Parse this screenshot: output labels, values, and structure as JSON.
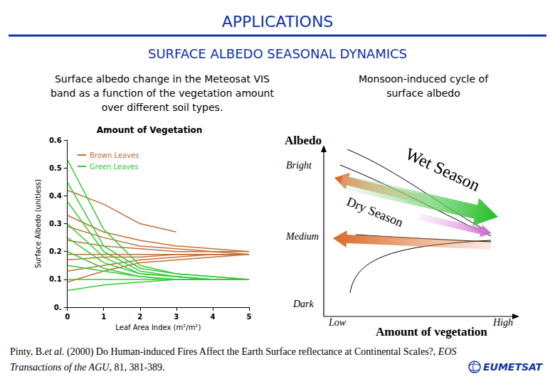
{
  "slide": {
    "title": "APPLICATIONS",
    "subtitle": "SURFACE ALBEDO SEASONAL DYNAMICS",
    "left_caption": [
      "Surface albedo change in the Meteosat VIS",
      "band as a function of the vegetation amount",
      "over different soil types."
    ],
    "right_caption": [
      "Monsoon-induced cycle of",
      "surface albedo"
    ],
    "citation": [
      [
        {
          "text": "Pinty, B.",
          "italic": false
        },
        {
          "text": "et al.",
          "italic": true
        },
        {
          "text": " (2000) Do Human-induced Fires Affect the Earth Surface reflectance at Continental Scales?, ",
          "italic": false
        },
        {
          "text": "EOS",
          "italic": true
        }
      ],
      [
        {
          "text": "Transactions of the AGU",
          "italic": true
        },
        {
          "text": ", 81, 381-389.",
          "italic": false
        }
      ]
    ],
    "logo": "EUMETSAT"
  },
  "chart_data": {
    "type": "line",
    "title": "Amount of Vegetation",
    "x_label": "Leaf Area Index (m²/m²)",
    "y_label": "Surface Albedo (unitless)",
    "x": [
      0,
      1,
      2,
      3,
      4,
      5
    ],
    "xlim": [
      0,
      5
    ],
    "xticks": [
      0,
      1,
      2,
      3,
      4,
      5
    ],
    "ylim": [
      0,
      0.6
    ],
    "yticks": [
      {
        "value": 0,
        "label": "0."
      },
      0.1,
      0.2,
      0.3,
      0.4,
      0.5,
      0.6
    ],
    "grid": false,
    "legend": "top-left",
    "series": [
      {
        "name": "Brown Leaves",
        "color": "#c0703a",
        "values": [
          0.42,
          0.37,
          0.3,
          0.27,
          null,
          null
        ]
      },
      {
        "name": "Brown Leaves",
        "color": "#c0703a",
        "values": [
          0.33,
          0.27,
          0.24,
          0.22,
          0.21,
          0.2
        ]
      },
      {
        "name": "Brown Leaves",
        "color": "#c0703a",
        "values": [
          0.29,
          0.25,
          0.22,
          0.21,
          0.2,
          0.2
        ]
      },
      {
        "name": "Brown Leaves",
        "color": "#c0703a",
        "values": [
          0.24,
          0.22,
          0.21,
          0.2,
          0.2,
          0.19
        ]
      },
      {
        "name": "Brown Leaves",
        "color": "#c0703a",
        "values": [
          0.19,
          0.19,
          0.19,
          0.19,
          0.19,
          0.19
        ]
      },
      {
        "name": "Brown Leaves",
        "color": "#c0703a",
        "values": [
          0.17,
          0.18,
          0.18,
          0.19,
          0.19,
          0.19
        ]
      },
      {
        "name": "Brown Leaves",
        "color": "#c0703a",
        "values": [
          0.13,
          0.15,
          0.17,
          0.18,
          0.19,
          0.19
        ]
      },
      {
        "name": "Brown Leaves",
        "color": "#c0703a",
        "values": [
          0.09,
          0.13,
          0.16,
          0.17,
          0.18,
          0.19
        ]
      },
      {
        "name": "Green Leaves",
        "color": "#33cc33",
        "values": [
          0.53,
          0.28,
          0.15,
          0.12,
          0.11,
          0.1
        ]
      },
      {
        "name": "Green Leaves",
        "color": "#33cc33",
        "values": [
          0.45,
          0.22,
          0.14,
          0.12,
          0.11,
          0.1
        ]
      },
      {
        "name": "Green Leaves",
        "color": "#33cc33",
        "values": [
          0.38,
          0.2,
          0.13,
          0.11,
          0.1,
          0.1
        ]
      },
      {
        "name": "Green Leaves",
        "color": "#33cc33",
        "values": [
          0.3,
          0.18,
          0.12,
          0.11,
          0.1,
          0.1
        ]
      },
      {
        "name": "Green Leaves",
        "color": "#33cc33",
        "values": [
          0.25,
          0.16,
          0.12,
          0.11,
          0.1,
          0.1
        ]
      },
      {
        "name": "Green Leaves",
        "color": "#33cc33",
        "values": [
          0.2,
          0.14,
          0.11,
          0.1,
          0.1,
          0.1
        ]
      },
      {
        "name": "Green Leaves",
        "color": "#33cc33",
        "values": [
          0.15,
          0.13,
          0.11,
          0.1,
          0.1,
          0.1
        ]
      },
      {
        "name": "Green Leaves",
        "color": "#33cc33",
        "values": [
          0.1,
          0.1,
          0.1,
          0.1,
          0.1,
          0.1
        ]
      },
      {
        "name": "Green Leaves",
        "color": "#33cc33",
        "values": [
          0.06,
          0.08,
          0.09,
          0.1,
          0.1,
          0.1
        ]
      }
    ]
  },
  "diagram": {
    "y_axis_title": "Albedo",
    "y_levels": [
      "Bright",
      "Medium",
      "Dark"
    ],
    "x_axis_title": "Amount of vegetation",
    "x_levels": [
      "Low",
      "High"
    ],
    "wet_label": "Wet Season",
    "dry_label": "Dry Season"
  }
}
